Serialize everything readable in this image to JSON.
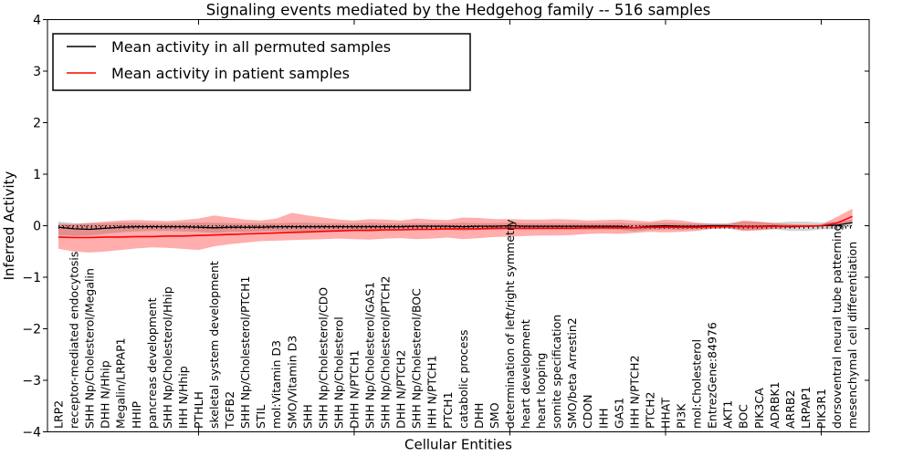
{
  "figure": {
    "background": "#ffffff",
    "frame_color": "#000000"
  },
  "chart_data": {
    "type": "line",
    "title": "Signaling events mediated by the Hedgehog family -- 516 samples",
    "xlabel": "Cellular Entities",
    "ylabel": "Inferred Activity",
    "ylim": [
      -4,
      4
    ],
    "yticks": [
      4,
      3,
      2,
      1,
      0,
      -1,
      -2,
      -3,
      -4
    ],
    "ytick_labels": [
      "4",
      "3",
      "2",
      "1",
      "0",
      "−1",
      "−2",
      "−3",
      "−4"
    ],
    "x_major_tick_indices": [
      9,
      19,
      29,
      39,
      49
    ],
    "legend_position": "upper left",
    "grid": false,
    "zero_line": true,
    "categories": [
      "LRP2",
      "receptor-mediated endocytosis",
      "SHH Np/Cholesterol/Megalin",
      "DHH N/Hhip",
      "Megalin/LRPAP1",
      "HHIP",
      "pancreas development",
      "SHH Np/Cholesterol/Hhip",
      "IHH N/Hhip",
      "PTHLH",
      "skeletal system development",
      "TGFB2",
      "SHH Np/Cholesterol/PTCH1",
      "STIL",
      "mol:Vitamin D3",
      "SMO/Vitamin D3",
      "SHH",
      "SHH Np/Cholesterol/CDO",
      "SHH Np/Cholesterol",
      "DHH N/PTCH1",
      "SHH Np/Cholesterol/GAS1",
      "SHH Np/Cholesterol/PTCH2",
      "DHH N/PTCH2",
      "SHH Np/Cholesterol/BOC",
      "IHH N/PTCH1",
      "PTCH1",
      "catabolic process",
      "DHH",
      "SMO",
      "determination of left/right symmetry",
      "heart development",
      "heart looping",
      "somite specification",
      "SMO/beta Arrestin2",
      "CDON",
      "IHH",
      "GAS1",
      "IHH N/PTCH2",
      "PTCH2",
      "HHAT",
      "PI3K",
      "mol:Cholesterol",
      "EntrezGene:84976",
      "AKT1",
      "BOC",
      "PIK3CA",
      "ADRBK1",
      "ARRB2",
      "LRPAP1",
      "PIK3R1",
      "dorsoventral neural tube patterning",
      "mesenchymal cell differentiation"
    ],
    "series": [
      {
        "name": "Mean activity in all permuted samples",
        "line_color": "#000000",
        "band_color": "rgba(128,128,128,0.35)",
        "mean": [
          -0.03,
          -0.06,
          -0.07,
          -0.05,
          -0.03,
          -0.02,
          -0.02,
          -0.02,
          -0.02,
          -0.03,
          -0.04,
          -0.03,
          -0.03,
          -0.03,
          -0.02,
          -0.02,
          -0.02,
          -0.02,
          -0.02,
          -0.02,
          -0.02,
          -0.02,
          -0.02,
          -0.01,
          -0.01,
          -0.01,
          -0.02,
          -0.01,
          -0.01,
          0.0,
          -0.01,
          -0.01,
          -0.01,
          -0.01,
          -0.01,
          -0.01,
          -0.01,
          -0.04,
          -0.01,
          0.0,
          -0.01,
          -0.01,
          0.0,
          0.0,
          -0.01,
          -0.01,
          0.0,
          -0.02,
          -0.01,
          0.0,
          0.01,
          0.06
        ],
        "upper": [
          0.08,
          0.05,
          0.04,
          0.05,
          0.06,
          0.06,
          0.05,
          0.05,
          0.06,
          0.06,
          0.06,
          0.05,
          0.05,
          0.05,
          0.05,
          0.06,
          0.06,
          0.05,
          0.05,
          0.05,
          0.06,
          0.05,
          0.05,
          0.05,
          0.05,
          0.05,
          0.06,
          0.05,
          0.05,
          0.06,
          0.05,
          0.05,
          0.05,
          0.05,
          0.05,
          0.05,
          0.06,
          0.04,
          0.05,
          0.06,
          0.05,
          0.04,
          0.04,
          0.05,
          0.08,
          0.07,
          0.06,
          0.08,
          0.08,
          0.06,
          0.08,
          0.12
        ],
        "lower": [
          -0.18,
          -0.2,
          -0.19,
          -0.16,
          -0.13,
          -0.11,
          -0.1,
          -0.1,
          -0.11,
          -0.12,
          -0.14,
          -0.12,
          -0.12,
          -0.11,
          -0.1,
          -0.11,
          -0.11,
          -0.1,
          -0.1,
          -0.09,
          -0.11,
          -0.1,
          -0.09,
          -0.09,
          -0.08,
          -0.08,
          -0.1,
          -0.08,
          -0.08,
          -0.07,
          -0.08,
          -0.07,
          -0.07,
          -0.07,
          -0.08,
          -0.07,
          -0.08,
          -0.11,
          -0.08,
          -0.07,
          -0.08,
          -0.07,
          -0.06,
          -0.06,
          -0.09,
          -0.08,
          -0.07,
          -0.1,
          -0.1,
          -0.07,
          -0.06,
          -0.02
        ]
      },
      {
        "name": "Mean activity in patient samples",
        "line_color": "#ff0000",
        "band_color": "rgba(255,0,0,0.32)",
        "mean": [
          -0.22,
          -0.23,
          -0.23,
          -0.22,
          -0.22,
          -0.21,
          -0.21,
          -0.2,
          -0.2,
          -0.19,
          -0.18,
          -0.17,
          -0.16,
          -0.15,
          -0.14,
          -0.13,
          -0.12,
          -0.11,
          -0.1,
          -0.09,
          -0.09,
          -0.08,
          -0.08,
          -0.07,
          -0.07,
          -0.06,
          -0.06,
          -0.06,
          -0.05,
          -0.05,
          -0.05,
          -0.05,
          -0.05,
          -0.05,
          -0.04,
          -0.04,
          -0.04,
          -0.04,
          -0.03,
          -0.03,
          -0.03,
          -0.03,
          -0.02,
          -0.02,
          -0.02,
          -0.02,
          -0.01,
          -0.01,
          -0.01,
          0.0,
          0.05,
          0.18
        ],
        "upper": [
          0.04,
          0.03,
          0.06,
          0.08,
          0.1,
          0.11,
          0.1,
          0.09,
          0.11,
          0.14,
          0.2,
          0.16,
          0.12,
          0.1,
          0.14,
          0.25,
          0.2,
          0.16,
          0.12,
          0.1,
          0.13,
          0.12,
          0.1,
          0.14,
          0.12,
          0.11,
          0.16,
          0.15,
          0.13,
          0.13,
          0.12,
          0.12,
          0.13,
          0.12,
          0.1,
          0.11,
          0.12,
          0.1,
          0.08,
          0.12,
          0.1,
          0.06,
          0.04,
          0.03,
          0.1,
          0.08,
          0.05,
          0.03,
          0.02,
          0.02,
          0.17,
          0.33
        ],
        "lower": [
          -0.45,
          -0.5,
          -0.52,
          -0.5,
          -0.47,
          -0.44,
          -0.42,
          -0.43,
          -0.45,
          -0.47,
          -0.4,
          -0.36,
          -0.33,
          -0.3,
          -0.29,
          -0.28,
          -0.27,
          -0.26,
          -0.25,
          -0.26,
          -0.27,
          -0.25,
          -0.24,
          -0.26,
          -0.25,
          -0.23,
          -0.26,
          -0.24,
          -0.22,
          -0.21,
          -0.2,
          -0.19,
          -0.19,
          -0.18,
          -0.16,
          -0.15,
          -0.16,
          -0.14,
          -0.12,
          -0.13,
          -0.12,
          -0.1,
          -0.06,
          -0.04,
          -0.1,
          -0.09,
          -0.06,
          -0.04,
          -0.03,
          -0.02,
          0.02,
          0.05
        ]
      }
    ]
  }
}
